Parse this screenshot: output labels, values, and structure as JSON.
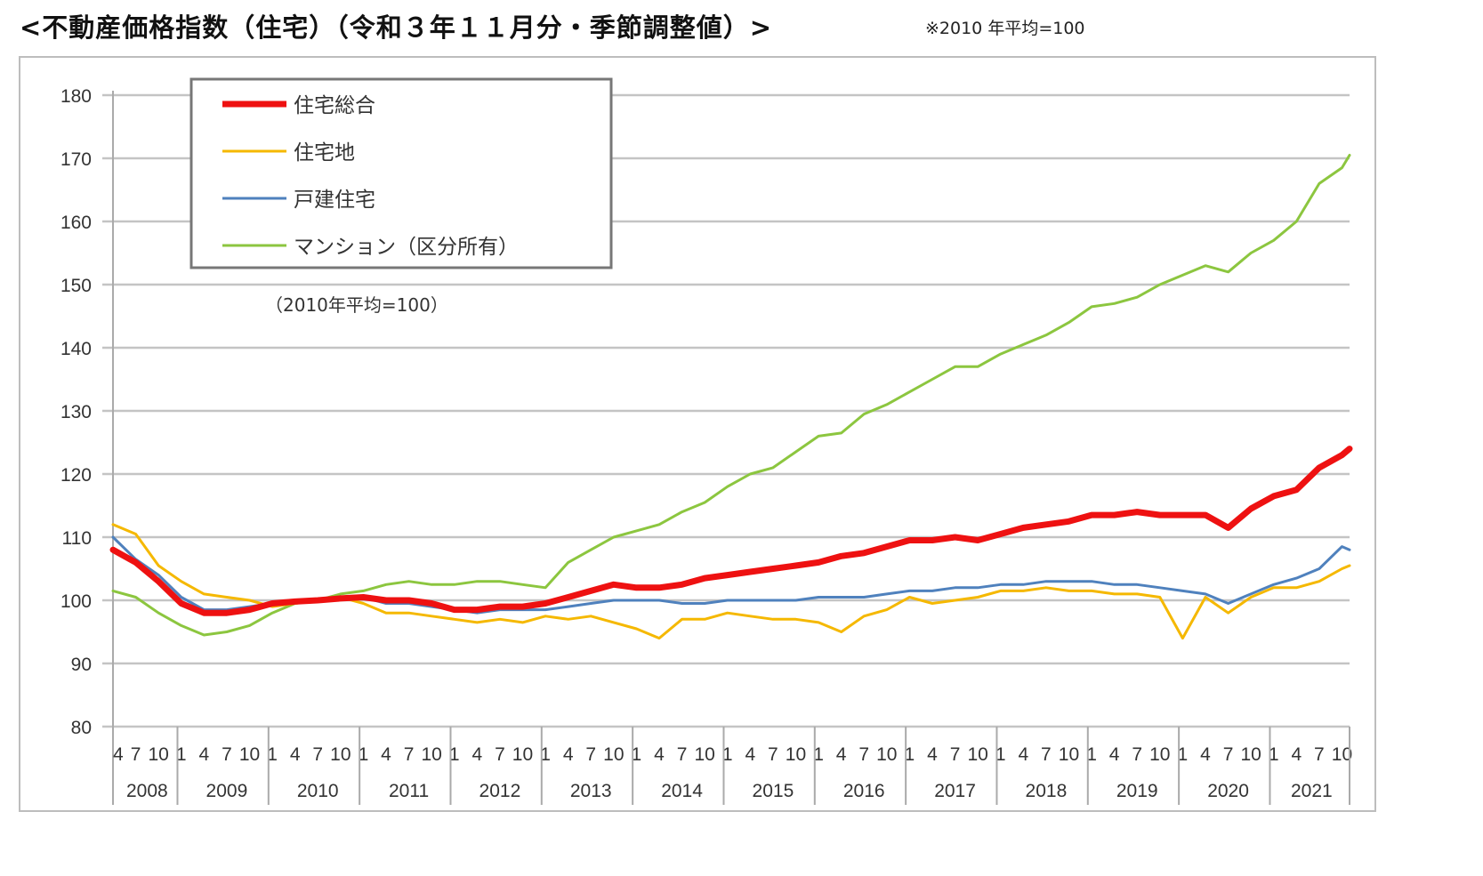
{
  "header": {
    "title": "<不動産価格指数（住宅）（令和３年１１月分・季節調整値）>",
    "note": "※2010 年平均=100"
  },
  "chart_data": {
    "type": "line",
    "title": "不動産価格指数（住宅）（令和３年１１月分・季節調整値）",
    "note": "（2010年平均=100）",
    "ylim": [
      80,
      180
    ],
    "yticks": [
      80,
      90,
      100,
      110,
      120,
      130,
      140,
      150,
      160,
      170,
      180
    ],
    "grid": true,
    "legend_position": "top-left",
    "years": [
      "2008",
      "2009",
      "2010",
      "2011",
      "2012",
      "2013",
      "2014",
      "2015",
      "2016",
      "2017",
      "2018",
      "2019",
      "2020",
      "2021"
    ],
    "x": [
      "2008-04",
      "2008-07",
      "2008-10",
      "2009-01",
      "2009-04",
      "2009-07",
      "2009-10",
      "2010-01",
      "2010-04",
      "2010-07",
      "2010-10",
      "2011-01",
      "2011-04",
      "2011-07",
      "2011-10",
      "2012-01",
      "2012-04",
      "2012-07",
      "2012-10",
      "2013-01",
      "2013-04",
      "2013-07",
      "2013-10",
      "2014-01",
      "2014-04",
      "2014-07",
      "2014-10",
      "2015-01",
      "2015-04",
      "2015-07",
      "2015-10",
      "2016-01",
      "2016-04",
      "2016-07",
      "2016-10",
      "2017-01",
      "2017-04",
      "2017-07",
      "2017-10",
      "2018-01",
      "2018-04",
      "2018-07",
      "2018-10",
      "2019-01",
      "2019-04",
      "2019-07",
      "2019-10",
      "2020-01",
      "2020-04",
      "2020-07",
      "2020-10",
      "2021-01",
      "2021-04",
      "2021-07",
      "2021-10",
      "2021-11"
    ],
    "series": [
      {
        "name": "マンション（区分所有）",
        "color": "#8cc63f",
        "width": 3,
        "values": [
          101.5,
          100.5,
          98,
          96,
          94.5,
          95,
          96,
          98,
          99.5,
          100,
          101,
          101.5,
          102.5,
          103,
          102.5,
          102.5,
          103,
          103,
          102.5,
          102,
          106,
          108,
          110,
          111,
          112,
          114,
          115.5,
          118,
          120,
          121,
          123.5,
          126,
          126.5,
          129.5,
          131,
          133,
          135,
          137,
          137,
          139,
          140.5,
          142,
          144,
          146.5,
          147,
          148,
          150,
          151.5,
          153,
          152,
          155,
          157,
          160,
          166,
          168.5,
          170.5
        ]
      },
      {
        "name": "住宅地",
        "color": "#f5b800",
        "width": 3,
        "values": [
          112,
          110.5,
          105.5,
          103,
          101,
          100.5,
          100,
          99,
          99.5,
          100,
          100.5,
          99.5,
          98,
          98,
          97.5,
          97,
          96.5,
          97,
          96.5,
          97.5,
          97,
          97.5,
          96.5,
          95.5,
          94,
          97,
          97,
          98,
          97.5,
          97,
          97,
          96.5,
          95,
          97.5,
          98.5,
          100.5,
          99.5,
          100,
          100.5,
          101.5,
          101.5,
          102,
          101.5,
          101.5,
          101,
          101,
          100.5,
          94,
          100.5,
          98,
          100.5,
          102,
          102,
          103,
          105,
          105.5
        ]
      },
      {
        "name": "戸建住宅",
        "color": "#4f81bd",
        "width": 3,
        "values": [
          110,
          106.5,
          104,
          100.5,
          98.5,
          98.5,
          99,
          99.5,
          100,
          100,
          100.5,
          100.5,
          99.5,
          99.5,
          99,
          98.5,
          98,
          98.5,
          98.5,
          98.5,
          99,
          99.5,
          100,
          100,
          100,
          99.5,
          99.5,
          100,
          100,
          100,
          100,
          100.5,
          100.5,
          100.5,
          101,
          101.5,
          101.5,
          102,
          102,
          102.5,
          102.5,
          103,
          103,
          103,
          102.5,
          102.5,
          102,
          101.5,
          101,
          99.5,
          101,
          102.5,
          103.5,
          105,
          108.5,
          108
        ]
      },
      {
        "name": "住宅総合",
        "color": "#ee1111",
        "width": 7,
        "values": [
          108,
          106,
          103,
          99.5,
          98,
          98,
          98.5,
          99.5,
          99.8,
          100,
          100.3,
          100.5,
          100,
          100,
          99.5,
          98.5,
          98.5,
          99,
          99,
          99.5,
          100.5,
          101.5,
          102.5,
          102,
          102,
          102.5,
          103.5,
          104,
          104.5,
          105,
          105.5,
          106,
          107,
          107.5,
          108.5,
          109.5,
          109.5,
          110,
          109.5,
          110.5,
          111.5,
          112,
          112.5,
          113.5,
          113.5,
          114,
          113.5,
          113.5,
          113.5,
          111.5,
          114.5,
          116.5,
          117.5,
          121,
          123,
          124
        ]
      }
    ],
    "legend_order": [
      3,
      1,
      2,
      0
    ]
  }
}
